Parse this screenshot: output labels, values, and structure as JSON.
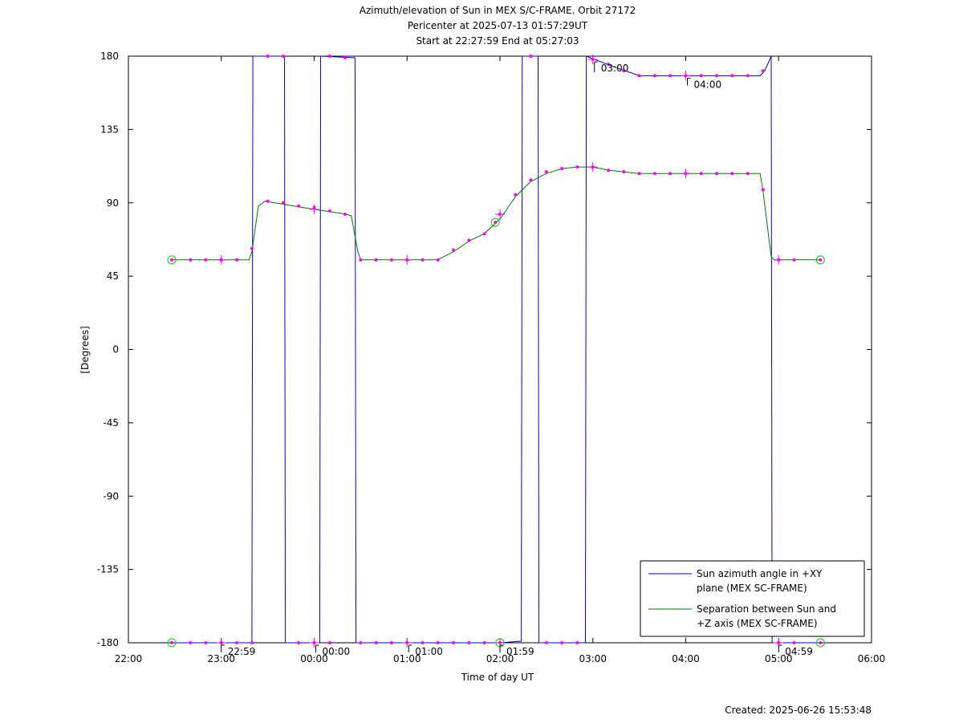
{
  "chart_data": {
    "type": "line",
    "title_lines": [
      "Azimuth/elevation of Sun in MEX S/C-FRAME.  Orbit 27172",
      "Pericenter at 2025-07-13 01:57:29UT",
      "Start at 22:27:59 End at 05:27:03"
    ],
    "xlabel": "Time of day UT",
    "ylabel": "[Degrees]",
    "xlim": [
      22,
      30
    ],
    "ylim": [
      -180,
      180
    ],
    "x_ticks": [
      {
        "v": 22,
        "label": "22:00"
      },
      {
        "v": 23,
        "label": "23:00"
      },
      {
        "v": 24,
        "label": "00:00"
      },
      {
        "v": 25,
        "label": "01:00"
      },
      {
        "v": 26,
        "label": "02:00"
      },
      {
        "v": 27,
        "label": "03:00"
      },
      {
        "v": 28,
        "label": "04:00"
      },
      {
        "v": 29,
        "label": "05:00"
      },
      {
        "v": 30,
        "label": "06:00"
      }
    ],
    "y_ticks": [
      180,
      135,
      90,
      45,
      0,
      -45,
      -90,
      -135,
      -180
    ],
    "legend_position": "bottom-right",
    "series": [
      {
        "name": "Sun azimuth angle in +XY plane (MEX SC-FRAME)",
        "legend_lines": [
          "Sun azimuth angle in +XY",
          "plane (MEX SC-FRAME)"
        ],
        "color": "#0000cc",
        "segments": [
          [
            [
              22.467,
              -180
            ],
            [
              23.33,
              -180
            ],
            [
              23.34,
              180
            ]
          ],
          [
            [
              23.34,
              180
            ],
            [
              23.68,
              180
            ],
            [
              23.69,
              -180
            ]
          ],
          [
            [
              23.69,
              -180
            ],
            [
              24.06,
              -180
            ],
            [
              24.07,
              180
            ]
          ],
          [
            [
              24.07,
              180
            ],
            [
              24.44,
              179
            ],
            [
              24.45,
              -180
            ]
          ],
          [
            [
              24.45,
              -180
            ],
            [
              26.0,
              -180
            ],
            [
              26.23,
              -179
            ],
            [
              26.24,
              180
            ]
          ],
          [
            [
              26.24,
              180
            ],
            [
              26.41,
              180
            ],
            [
              26.42,
              -180
            ]
          ],
          [
            [
              26.42,
              -180
            ],
            [
              26.92,
              -180
            ],
            [
              26.93,
              180
            ],
            [
              27.2,
              174
            ],
            [
              27.5,
              168
            ],
            [
              28.0,
              168
            ],
            [
              28.8,
              168
            ],
            [
              28.85,
              171
            ],
            [
              28.92,
              180
            ]
          ],
          [
            [
              28.92,
              180
            ],
            [
              28.93,
              -180
            ],
            [
              29.45,
              -180
            ]
          ]
        ]
      },
      {
        "name": "Separation between Sun and +Z axis (MEX SC-FRAME)",
        "legend_lines": [
          "Separation between Sun and",
          "+Z axis (MEX SC-FRAME)"
        ],
        "color": "#007700",
        "segments": [
          [
            [
              22.467,
              55
            ],
            [
              23.0,
              55
            ],
            [
              23.3,
              55
            ],
            [
              23.33,
              60
            ],
            [
              23.4,
              88
            ],
            [
              23.47,
              91
            ],
            [
              24.0,
              86
            ],
            [
              24.35,
              83
            ],
            [
              24.4,
              82
            ],
            [
              24.47,
              60
            ],
            [
              24.5,
              55
            ],
            [
              25.0,
              55
            ],
            [
              25.33,
              55
            ],
            [
              25.5,
              60
            ],
            [
              25.68,
              67
            ],
            [
              25.83,
              71
            ],
            [
              26.0,
              80
            ],
            [
              26.17,
              94
            ],
            [
              26.33,
              103
            ],
            [
              26.5,
              108
            ],
            [
              26.67,
              111
            ],
            [
              26.83,
              112
            ],
            [
              27.0,
              112
            ],
            [
              27.17,
              110
            ],
            [
              27.5,
              108
            ],
            [
              28.0,
              108
            ],
            [
              28.33,
              108
            ],
            [
              28.8,
              108
            ],
            [
              28.83,
              98
            ],
            [
              28.92,
              57
            ],
            [
              28.95,
              55
            ],
            [
              29.45,
              55
            ]
          ]
        ]
      }
    ],
    "marker_points": [
      [
        22.467,
        55
      ],
      [
        22.667,
        55
      ],
      [
        22.833,
        55
      ],
      [
        23.0,
        55
      ],
      [
        23.167,
        55
      ],
      [
        23.33,
        62
      ],
      [
        23.5,
        91
      ],
      [
        23.667,
        90
      ],
      [
        23.833,
        88
      ],
      [
        24.0,
        87
      ],
      [
        24.167,
        85
      ],
      [
        24.333,
        83
      ],
      [
        24.5,
        55
      ],
      [
        24.667,
        55
      ],
      [
        24.833,
        55
      ],
      [
        25.0,
        55
      ],
      [
        25.167,
        55
      ],
      [
        25.333,
        55
      ],
      [
        25.5,
        61
      ],
      [
        25.667,
        67
      ],
      [
        25.833,
        71
      ],
      [
        25.95,
        78
      ],
      [
        26.0,
        83
      ],
      [
        26.167,
        95
      ],
      [
        26.333,
        104
      ],
      [
        26.5,
        109
      ],
      [
        26.667,
        111
      ],
      [
        26.833,
        112
      ],
      [
        27.0,
        112
      ],
      [
        27.167,
        110
      ],
      [
        27.333,
        109
      ],
      [
        27.5,
        108
      ],
      [
        27.667,
        108
      ],
      [
        27.833,
        108
      ],
      [
        28.0,
        108
      ],
      [
        28.167,
        108
      ],
      [
        28.333,
        108
      ],
      [
        28.5,
        108
      ],
      [
        28.667,
        108
      ],
      [
        28.833,
        98
      ],
      [
        29.0,
        55
      ],
      [
        29.167,
        55
      ],
      [
        29.45,
        55
      ],
      [
        22.467,
        -180
      ],
      [
        22.667,
        -180
      ],
      [
        22.833,
        -180
      ],
      [
        23.0,
        -180
      ],
      [
        23.167,
        -180
      ],
      [
        23.333,
        -180
      ],
      [
        23.833,
        -180
      ],
      [
        24.0,
        -180
      ],
      [
        24.167,
        -180
      ],
      [
        24.5,
        -180
      ],
      [
        24.667,
        -180
      ],
      [
        24.833,
        -180
      ],
      [
        25.0,
        -180
      ],
      [
        25.167,
        -180
      ],
      [
        25.333,
        -180
      ],
      [
        25.5,
        -180
      ],
      [
        25.667,
        -180
      ],
      [
        25.833,
        -180
      ],
      [
        26.0,
        -180
      ],
      [
        26.5,
        -180
      ],
      [
        26.667,
        -180
      ],
      [
        26.833,
        -180
      ],
      [
        29.0,
        -180
      ],
      [
        29.167,
        -180
      ],
      [
        29.45,
        -180
      ],
      [
        23.5,
        180
      ],
      [
        23.667,
        180
      ],
      [
        24.167,
        180
      ],
      [
        24.333,
        179
      ],
      [
        26.333,
        180
      ],
      [
        27.0,
        178
      ],
      [
        27.167,
        175
      ],
      [
        27.333,
        171
      ],
      [
        27.5,
        168
      ],
      [
        27.667,
        168
      ],
      [
        27.833,
        168
      ],
      [
        28.0,
        168
      ],
      [
        28.167,
        168
      ],
      [
        28.333,
        168
      ],
      [
        28.5,
        168
      ],
      [
        28.667,
        168
      ],
      [
        28.833,
        171
      ]
    ],
    "hour_crosses": [
      [
        23.0,
        55
      ],
      [
        24.0,
        86
      ],
      [
        25.0,
        55
      ],
      [
        26.0,
        83
      ],
      [
        27.0,
        112
      ],
      [
        28.0,
        108
      ],
      [
        29.0,
        55
      ],
      [
        23.0,
        -180
      ],
      [
        24.0,
        -180
      ],
      [
        25.0,
        -180
      ],
      [
        26.0,
        -180
      ],
      [
        27.0,
        178
      ],
      [
        28.0,
        168
      ],
      [
        29.0,
        -180
      ]
    ],
    "circle_markers": [
      [
        22.467,
        55
      ],
      [
        29.45,
        55
      ],
      [
        25.95,
        78
      ],
      [
        22.467,
        -180
      ],
      [
        26.0,
        -180
      ],
      [
        29.45,
        -180
      ]
    ],
    "annotations": [
      {
        "x": 22.983,
        "y": -180,
        "label": "22:59"
      },
      {
        "x": 24.0,
        "y": -180,
        "label": "00:00"
      },
      {
        "x": 25.0,
        "y": -180,
        "label": "01:00"
      },
      {
        "x": 25.983,
        "y": -180,
        "label": "01:59"
      },
      {
        "x": 27.0,
        "y": 178,
        "label": "03:00"
      },
      {
        "x": 28.0,
        "y": 168,
        "label": "04:00"
      },
      {
        "x": 28.983,
        "y": -180,
        "label": "04:59"
      }
    ]
  },
  "footer": {
    "created": "Created: 2025-06-26 15:53:48"
  }
}
